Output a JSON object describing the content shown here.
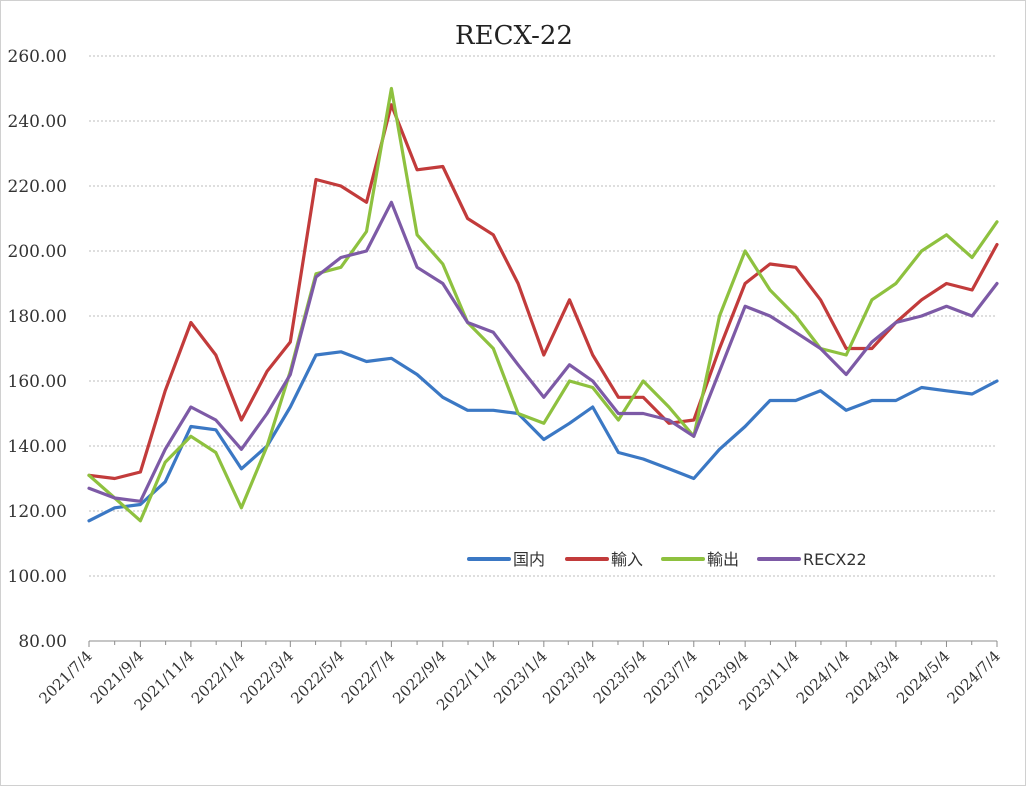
{
  "chart_data": {
    "type": "line",
    "title": "RECX-22",
    "xlabel": "",
    "ylabel": "",
    "ylim": [
      80,
      260
    ],
    "yticks": [
      "80.00",
      "100.00",
      "120.00",
      "140.00",
      "160.00",
      "180.00",
      "200.00",
      "220.00",
      "240.00",
      "260.00"
    ],
    "xticks": [
      "2021/7/4",
      "2021/9/4",
      "2021/11/4",
      "2022/1/4",
      "2022/3/4",
      "2022/5/4",
      "2022/7/4",
      "2022/9/4",
      "2022/11/4",
      "2023/1/4",
      "2023/3/4",
      "2023/5/4",
      "2023/7/4",
      "2023/9/4",
      "2023/11/4",
      "2024/1/4",
      "2024/3/4",
      "2024/5/4",
      "2024/7/4"
    ],
    "grid": true,
    "legend_position": "lower-center-right",
    "x": [
      "2021/7/4",
      "2021/8/4",
      "2021/9/4",
      "2021/10/4",
      "2021/11/4",
      "2021/12/4",
      "2022/1/4",
      "2022/2/4",
      "2022/3/4",
      "2022/4/4",
      "2022/5/4",
      "2022/6/4",
      "2022/7/4",
      "2022/8/4",
      "2022/9/4",
      "2022/10/4",
      "2022/11/4",
      "2022/12/4",
      "2023/1/4",
      "2023/2/4",
      "2023/3/4",
      "2023/4/4",
      "2023/5/4",
      "2023/6/4",
      "2023/7/4",
      "2023/8/4",
      "2023/9/4",
      "2023/10/4",
      "2023/11/4",
      "2023/12/4",
      "2024/1/4",
      "2024/2/4",
      "2024/3/4",
      "2024/4/4",
      "2024/5/4",
      "2024/6/4",
      "2024/7/4"
    ],
    "series": [
      {
        "name": "国内",
        "color": "#3b78c4",
        "values": [
          117,
          121,
          122,
          129,
          146,
          145,
          133,
          140,
          152,
          168,
          169,
          166,
          167,
          162,
          155,
          151,
          151,
          150,
          142,
          147,
          152,
          138,
          136,
          133,
          130,
          139,
          146,
          154,
          154,
          157,
          151,
          154,
          154,
          158,
          157,
          156,
          160
        ]
      },
      {
        "name": "輸入",
        "color": "#c23b3b",
        "values": [
          131,
          130,
          132,
          157,
          178,
          168,
          148,
          163,
          172,
          222,
          220,
          215,
          245,
          225,
          226,
          210,
          205,
          190,
          168,
          185,
          168,
          155,
          155,
          147,
          148,
          170,
          190,
          196,
          195,
          185,
          170,
          170,
          178,
          185,
          190,
          188,
          202
        ]
      },
      {
        "name": "輸出",
        "color": "#8ec13f",
        "values": [
          131,
          124,
          117,
          135,
          143,
          138,
          121,
          140,
          163,
          193,
          195,
          206,
          250,
          205,
          196,
          178,
          170,
          150,
          147,
          160,
          158,
          148,
          160,
          152,
          143,
          180,
          200,
          188,
          180,
          170,
          168,
          185,
          190,
          200,
          205,
          198,
          209
        ]
      },
      {
        "name": "RECX22",
        "color": "#7d5aa6",
        "values": [
          127,
          124,
          123,
          139,
          152,
          148,
          139,
          150,
          162,
          192,
          198,
          200,
          215,
          195,
          190,
          178,
          175,
          165,
          155,
          165,
          160,
          150,
          150,
          148,
          143,
          163,
          183,
          180,
          175,
          170,
          162,
          172,
          178,
          180,
          183,
          180,
          190
        ]
      }
    ]
  }
}
